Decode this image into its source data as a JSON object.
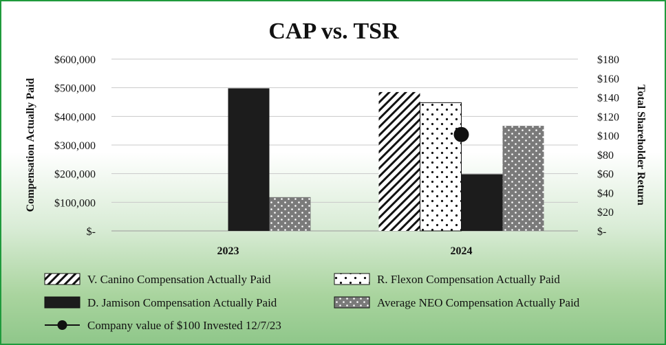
{
  "chart_data": {
    "type": "bar",
    "title": "CAP vs. TSR",
    "categories": [
      "2023",
      "2024"
    ],
    "ylabel": "Compensation Actually Paid",
    "y2label": "Total Shareholder Return",
    "ylim": [
      0,
      600000
    ],
    "y2lim": [
      0,
      180
    ],
    "y_ticks": [
      "$-",
      "$100,000",
      "$200,000",
      "$300,000",
      "$400,000",
      "$500,000",
      "$600,000"
    ],
    "y2_ticks": [
      "$-",
      "$20",
      "$40",
      "$60",
      "$80",
      "$100",
      "$120",
      "$140",
      "$160",
      "$180"
    ],
    "series": [
      {
        "name": "V. Canino Compensation Actually Paid",
        "pattern": "diagonal",
        "values": [
          null,
          485000
        ]
      },
      {
        "name": "R. Flexon Compensation Actually Paid",
        "pattern": "sparse-dots",
        "values": [
          null,
          448000
        ]
      },
      {
        "name": "D. Jamison Compensation Actually Paid",
        "pattern": "solid",
        "values": [
          498000,
          198000
        ]
      },
      {
        "name": "Average NEO Compensation Actually Paid",
        "pattern": "gray-dots",
        "values": [
          118000,
          367000
        ]
      }
    ],
    "line_series": {
      "name": "Company value of $100 Invested 12/7/23",
      "axis": "right",
      "values": [
        null,
        101
      ]
    },
    "grid": true,
    "legend_position": "bottom"
  },
  "colors": {
    "border": "#1f9a3c",
    "bar_dark": "#1c1c1c",
    "bar_gray": "#7d7d7d",
    "grid": "#c8c8c8"
  }
}
